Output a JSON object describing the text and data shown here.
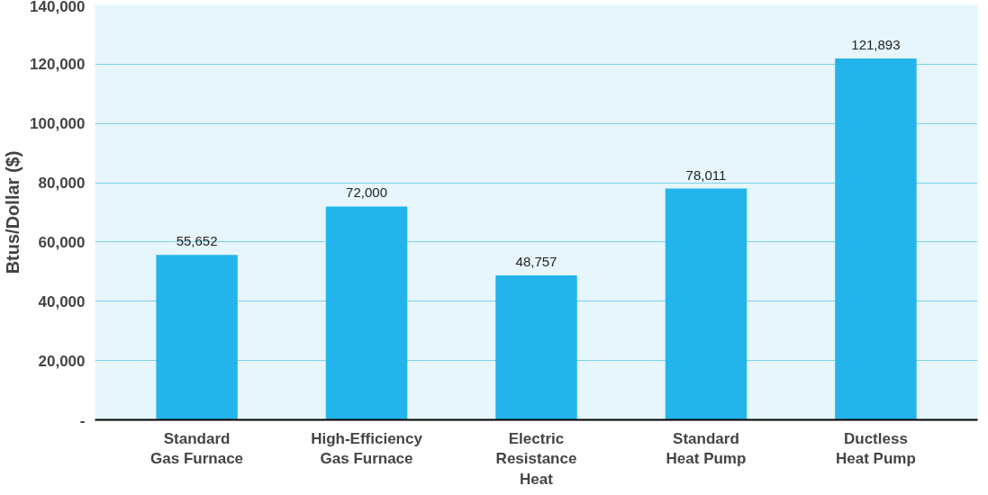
{
  "chart_data": {
    "type": "bar",
    "ylabel": "Btus/Dollar ($)",
    "categories": [
      "Standard\nGas Furnace",
      "High-Efficiency\nGas Furnace",
      "Electric\nResistance\nHeat",
      "Standard\nHeat Pump",
      "Ductless\nHeat Pump"
    ],
    "values": [
      55652,
      72000,
      48757,
      78011,
      121893
    ],
    "color": "#22b4ea",
    "ylim": [
      0,
      140000
    ],
    "yticks": [
      {
        "value": 0,
        "label": "-"
      },
      {
        "value": 20000,
        "label": "20,000"
      },
      {
        "value": 40000,
        "label": "40,000"
      },
      {
        "value": 60000,
        "label": "60,000"
      },
      {
        "value": 80000,
        "label": "80,000"
      },
      {
        "value": 100000,
        "label": "100,000"
      },
      {
        "value": 120000,
        "label": "120,000"
      },
      {
        "value": 140000,
        "label": "140,000"
      }
    ],
    "value_labels": [
      "55,652",
      "72,000",
      "48,757",
      "78,011",
      "121,893"
    ],
    "grid": "y"
  }
}
